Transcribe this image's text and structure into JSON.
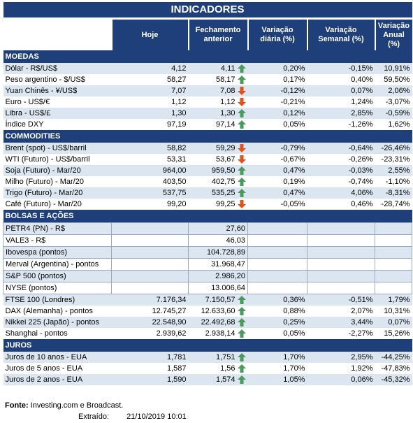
{
  "title": "INDICADORES",
  "headers": {
    "hoje": "Hoje",
    "fechamento": "Fechamento anterior",
    "var_diaria": "Variação diária (%)",
    "var_semanal": "Variação Semanal (%)",
    "var_anual": "Variação Anual (%)"
  },
  "sections": {
    "moedas": "MOEDAS",
    "commodities": "COMMODITIES",
    "bolsas": "BOLSAS E AÇÕES",
    "juros": "JUROS"
  },
  "moedas": [
    {
      "name": "Dólar - R$/US$",
      "hoje": "4,12",
      "fech": "4,11",
      "dir": "up",
      "diaria": "0,20%",
      "semanal": "-0,15%",
      "anual": "10,91%"
    },
    {
      "name": "Peso argentino - $/US$",
      "hoje": "58,27",
      "fech": "58,17",
      "dir": "up",
      "diaria": "0,17%",
      "semanal": "0,40%",
      "anual": "59,50%"
    },
    {
      "name": "Yuan Chinês - ¥/US$",
      "hoje": "7,07",
      "fech": "7,08",
      "dir": "down",
      "diaria": "-0,12%",
      "semanal": "0,07%",
      "anual": "2,06%"
    },
    {
      "name": "Euro - US$/€",
      "hoje": "1,12",
      "fech": "1,12",
      "dir": "down",
      "diaria": "-0,21%",
      "semanal": "1,24%",
      "anual": "-3,07%"
    },
    {
      "name": "Libra - US$/£",
      "hoje": "1,30",
      "fech": "1,30",
      "dir": "up",
      "diaria": "0,12%",
      "semanal": "2,85%",
      "anual": "-0,59%"
    },
    {
      "name": "Índice DXY",
      "hoje": "97,19",
      "fech": "97,14",
      "dir": "up",
      "diaria": "0,05%",
      "semanal": "-1,26%",
      "anual": "1,62%"
    }
  ],
  "commodities": [
    {
      "name": "Brent (spot) - US$/barril",
      "hoje": "58,82",
      "fech": "59,29",
      "dir": "down",
      "diaria": "-0,79%",
      "semanal": "-0,64%",
      "anual": "-26,46%"
    },
    {
      "name": "WTI (Futuro) - US$/barril",
      "hoje": "53,31",
      "fech": "53,67",
      "dir": "down",
      "diaria": "-0,67%",
      "semanal": "-0,26%",
      "anual": "-23,31%"
    },
    {
      "name": "Soja (Futuro) - Mar/20",
      "hoje": "964,00",
      "fech": "959,50",
      "dir": "up",
      "diaria": "0,47%",
      "semanal": "-0,03%",
      "anual": "2,55%"
    },
    {
      "name": "Milho (Futuro) - Mar/20",
      "hoje": "403,50",
      "fech": "402,75",
      "dir": "up",
      "diaria": "0,19%",
      "semanal": "-0,74%",
      "anual": "-1,10%"
    },
    {
      "name": "Trigo (Futuro) - Mar/20",
      "hoje": "537,75",
      "fech": "535,25",
      "dir": "up",
      "diaria": "0,47%",
      "semanal": "4,06%",
      "anual": "-8,31%"
    },
    {
      "name": "Café (Futuro) - Mar/20",
      "hoje": "99,20",
      "fech": "99,25",
      "dir": "down",
      "diaria": "-0,05%",
      "semanal": "0,46%",
      "anual": "-28,74%"
    }
  ],
  "bolsas": [
    {
      "name": "PETR4 (PN) - R$",
      "hoje": "",
      "fech": "27,60",
      "dir": "",
      "diaria": "",
      "semanal": "",
      "anual": ""
    },
    {
      "name": "VALE3 - R$",
      "hoje": "",
      "fech": "46,03",
      "dir": "",
      "diaria": "",
      "semanal": "",
      "anual": ""
    },
    {
      "name": "Ibovespa (pontos)",
      "hoje": "",
      "fech": "104.728,89",
      "dir": "",
      "diaria": "",
      "semanal": "",
      "anual": ""
    },
    {
      "name": "Merval (Argentina) - pontos",
      "hoje": "",
      "fech": "31.968,47",
      "dir": "",
      "diaria": "",
      "semanal": "",
      "anual": ""
    },
    {
      "name": "S&P 500 (pontos)",
      "hoje": "",
      "fech": "2.986,20",
      "dir": "",
      "diaria": "",
      "semanal": "",
      "anual": ""
    },
    {
      "name": "NYSE (pontos)",
      "hoje": "",
      "fech": "13.006,64",
      "dir": "",
      "diaria": "",
      "semanal": "",
      "anual": ""
    },
    {
      "name": "FTSE 100 (Londres)",
      "hoje": "7.176,34",
      "fech": "7.150,57",
      "dir": "up",
      "diaria": "0,36%",
      "semanal": "-0,51%",
      "anual": "1,79%"
    },
    {
      "name": "DAX (Alemanha) - pontos",
      "hoje": "12.745,27",
      "fech": "12.633,60",
      "dir": "up",
      "diaria": "0,88%",
      "semanal": "2,07%",
      "anual": "10,31%"
    },
    {
      "name": "Nikkei 225 (Japão) - pontos",
      "hoje": "22.548,90",
      "fech": "22.492,68",
      "dir": "up",
      "diaria": "0,25%",
      "semanal": "3,44%",
      "anual": "0,07%"
    },
    {
      "name": "Shanghai - pontos",
      "hoje": "2.939,62",
      "fech": "2.938,14",
      "dir": "up",
      "diaria": "0,05%",
      "semanal": "-2,27%",
      "anual": "15,26%"
    }
  ],
  "juros": [
    {
      "name": "Juros de 10 anos - EUA",
      "hoje": "1,781",
      "fech": "1,751",
      "dir": "up",
      "diaria": "1,70%",
      "semanal": "2,95%",
      "anual": "-44,25%"
    },
    {
      "name": "Juros de 5 anos - EUA",
      "hoje": "1,587",
      "fech": "1,56",
      "dir": "up",
      "diaria": "1,70%",
      "semanal": "1,92%",
      "anual": "-47,83%"
    },
    {
      "name": "Juros de 2 anos - EUA",
      "hoje": "1,590",
      "fech": "1,574",
      "dir": "up",
      "diaria": "1,05%",
      "semanal": "0,06%",
      "anual": "-45,32%"
    }
  ],
  "footer": {
    "fonte_label": "Fonte:",
    "fonte": "Investing.com e Broadcast.",
    "extraido_label": "Extraído:",
    "extraido": "21/10/2019 10:01"
  },
  "colors": {
    "header_bg": "#1f3f7a",
    "alt_row": "#dce6f1",
    "up": "#4a9a5e",
    "down": "#e0531f"
  }
}
